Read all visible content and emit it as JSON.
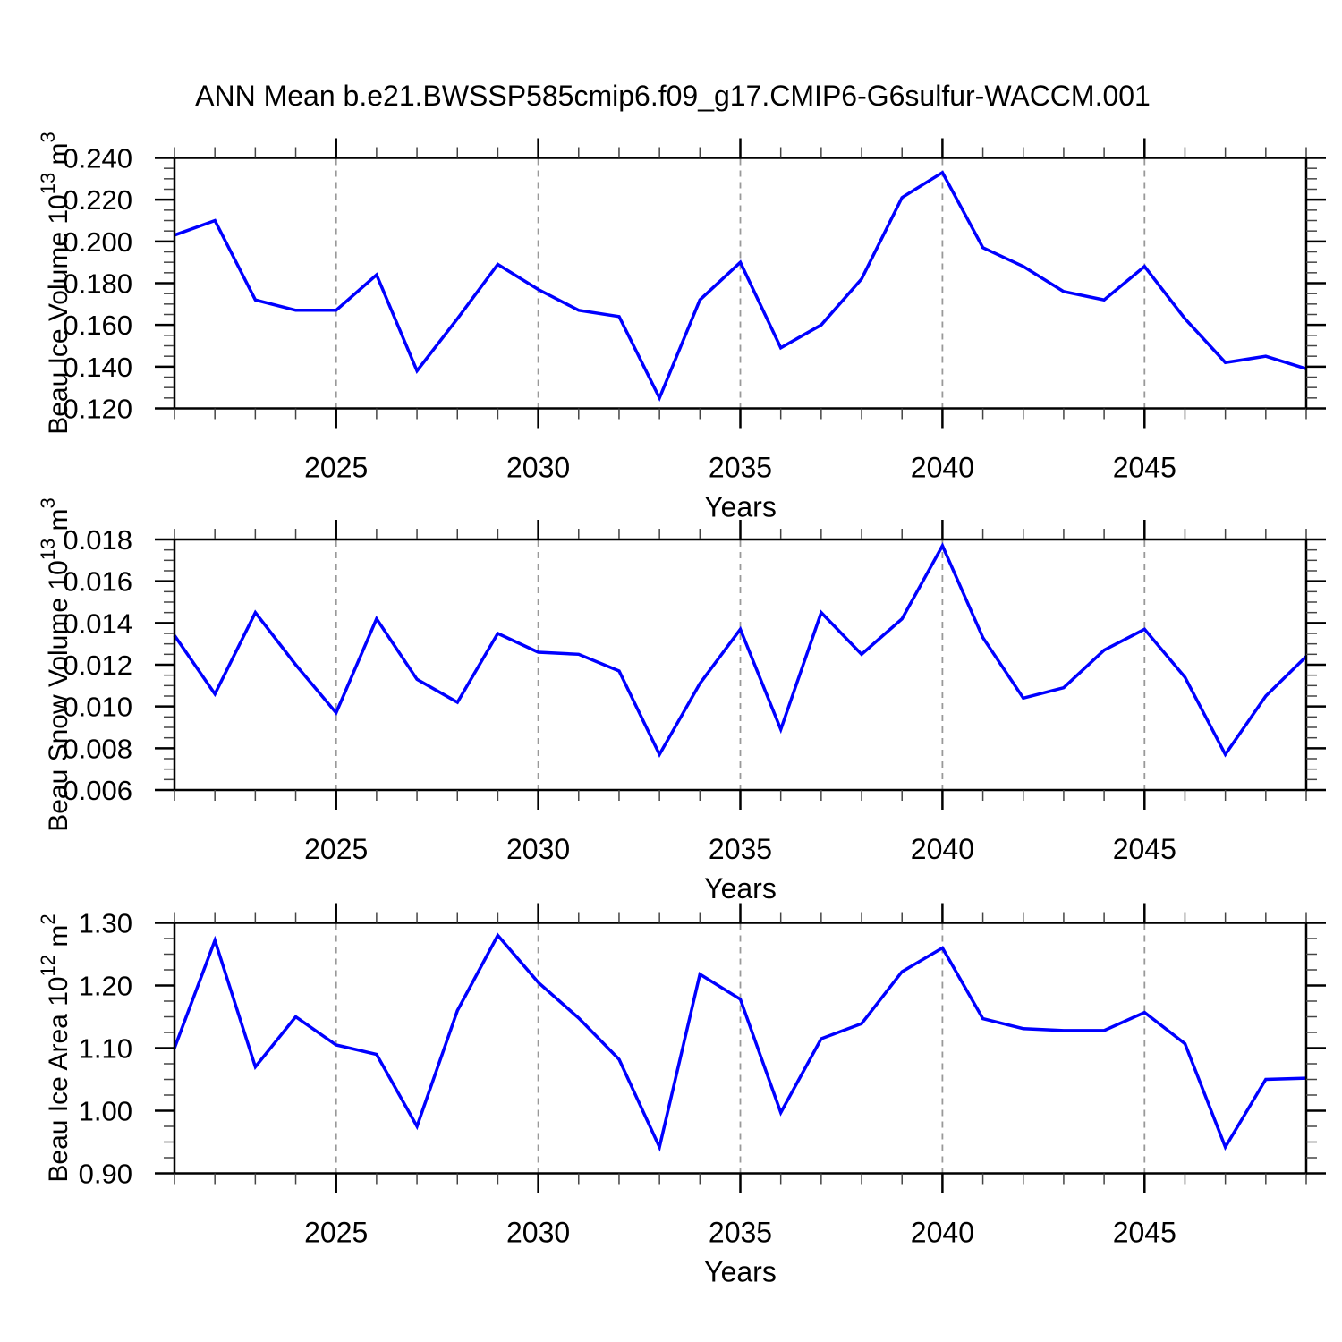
{
  "title": "ANN Mean b.e21.BWSSP585cmip6.f09_g17.CMIP6-G6sulfur-WACCM.001",
  "xlabel": "Years",
  "x_tick_labels": [
    "2025",
    "2030",
    "2035",
    "2040",
    "2045"
  ],
  "colors": {
    "line": "#0000ff",
    "frame": "#000000",
    "gridline": "#999999",
    "minor_tick": "#444444",
    "text": "#000000"
  },
  "chart_data": [
    {
      "type": "line",
      "id": "beau-ice-volume",
      "ylabel_plain": "Beau Ice Volume 10^13 m^3",
      "ylabel_parts": [
        {
          "text": "Beau Ice Volume 10"
        },
        {
          "text": "13",
          "sup": true
        },
        {
          "text": " m"
        },
        {
          "text": "3",
          "sup": true
        }
      ],
      "xlabel": "Years",
      "ylim": [
        0.12,
        0.24
      ],
      "ytick_major_step": 0.02,
      "ytick_minor_step": 0.005,
      "ytick_labels": [
        "0.120",
        "0.140",
        "0.160",
        "0.180",
        "0.200",
        "0.220",
        "0.240"
      ],
      "xticks": [
        2025,
        2030,
        2035,
        2040,
        2045
      ],
      "grid": "vertical-dashed",
      "x": [
        2021,
        2022,
        2023,
        2024,
        2025,
        2026,
        2027,
        2028,
        2029,
        2030,
        2031,
        2032,
        2033,
        2034,
        2035,
        2036,
        2037,
        2038,
        2039,
        2040,
        2041,
        2042,
        2043,
        2044,
        2045,
        2046,
        2047,
        2048,
        2049
      ],
      "values": [
        0.203,
        0.21,
        0.172,
        0.167,
        0.167,
        0.184,
        0.138,
        0.163,
        0.189,
        0.177,
        0.167,
        0.164,
        0.125,
        0.172,
        0.19,
        0.149,
        0.16,
        0.182,
        0.221,
        0.233,
        0.197,
        0.188,
        0.176,
        0.172,
        0.188,
        0.163,
        0.142,
        0.145,
        0.139
      ]
    },
    {
      "type": "line",
      "id": "beau-snow-volume",
      "ylabel_plain": "Beau Snow Volume 10^13 m^3",
      "ylabel_parts": [
        {
          "text": "Beau Snow Volume 10"
        },
        {
          "text": "13",
          "sup": true
        },
        {
          "text": " m"
        },
        {
          "text": "3",
          "sup": true
        }
      ],
      "xlabel": "Years",
      "ylim": [
        0.006,
        0.018
      ],
      "ytick_major_step": 0.002,
      "ytick_minor_step": 0.0005,
      "ytick_labels": [
        "0.006",
        "0.008",
        "0.010",
        "0.012",
        "0.014",
        "0.016",
        "0.018"
      ],
      "xticks": [
        2025,
        2030,
        2035,
        2040,
        2045
      ],
      "grid": "vertical-dashed",
      "x": [
        2021,
        2022,
        2023,
        2024,
        2025,
        2026,
        2027,
        2028,
        2029,
        2030,
        2031,
        2032,
        2033,
        2034,
        2035,
        2036,
        2037,
        2038,
        2039,
        2040,
        2041,
        2042,
        2043,
        2044,
        2045,
        2046,
        2047,
        2048,
        2049
      ],
      "values": [
        0.0134,
        0.0106,
        0.0145,
        0.012,
        0.0097,
        0.0142,
        0.0113,
        0.0102,
        0.0135,
        0.0126,
        0.0125,
        0.0117,
        0.0077,
        0.0111,
        0.0137,
        0.0089,
        0.0145,
        0.0125,
        0.0142,
        0.0177,
        0.0133,
        0.0104,
        0.0109,
        0.0127,
        0.0137,
        0.0114,
        0.0077,
        0.0105,
        0.0124
      ]
    },
    {
      "type": "line",
      "id": "beau-ice-area",
      "ylabel_plain": "Beau Ice Area 10^12 m^2",
      "ylabel_parts": [
        {
          "text": "Beau Ice Area 10"
        },
        {
          "text": "12",
          "sup": true
        },
        {
          "text": " m"
        },
        {
          "text": "2",
          "sup": true
        }
      ],
      "xlabel": "Years",
      "ylim": [
        0.9,
        1.3
      ],
      "ytick_major_step": 0.1,
      "ytick_minor_step": 0.025,
      "ytick_labels": [
        "0.90",
        "1.00",
        "1.10",
        "1.20",
        "1.30"
      ],
      "xticks": [
        2025,
        2030,
        2035,
        2040,
        2045
      ],
      "grid": "vertical-dashed",
      "x": [
        2021,
        2022,
        2023,
        2024,
        2025,
        2026,
        2027,
        2028,
        2029,
        2030,
        2031,
        2032,
        2033,
        2034,
        2035,
        2036,
        2037,
        2038,
        2039,
        2040,
        2041,
        2042,
        2043,
        2044,
        2045,
        2046,
        2047,
        2048,
        2049
      ],
      "values": [
        1.1,
        1.272,
        1.07,
        1.15,
        1.105,
        1.09,
        0.975,
        1.16,
        1.28,
        1.205,
        1.148,
        1.082,
        0.942,
        1.218,
        1.178,
        0.997,
        1.115,
        1.139,
        1.222,
        1.26,
        1.147,
        1.131,
        1.128,
        1.128,
        1.157,
        1.107,
        0.942,
        1.05,
        1.052
      ]
    }
  ]
}
